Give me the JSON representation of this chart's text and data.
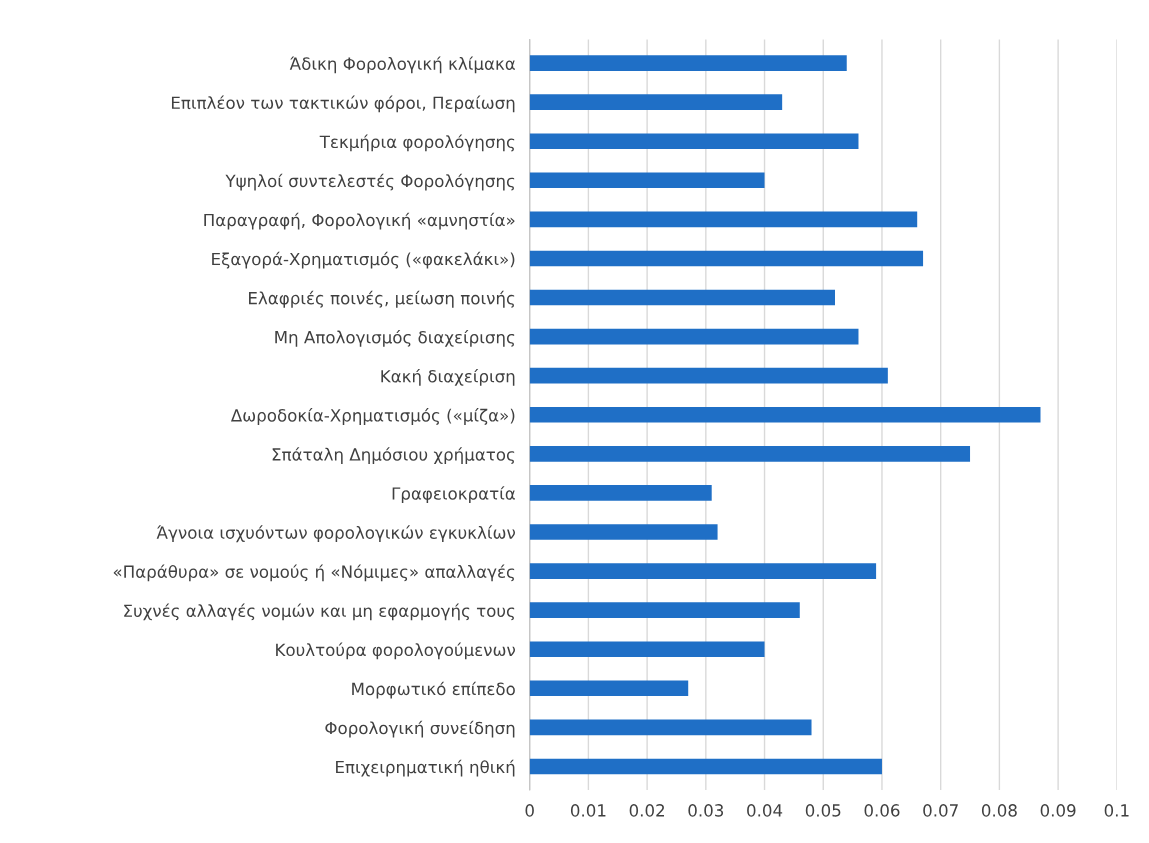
{
  "chart_data": {
    "type": "bar",
    "orientation": "horizontal",
    "categories": [
      "Άδικη Φορολογική κλίμακα",
      "Επιπλέον των τακτικών φόροι, Περαίωση",
      "Τεκμήρια φορολόγησης",
      "Υψηλοί συντελεστές Φορολόγησης",
      "Παραγραφή, Φορολογική «αμνηστία»",
      "Εξαγορά-Χρηματισμός («φακελάκι»)",
      "Ελαφριές ποινές, μείωση ποινής",
      "Μη Απολογισμός διαχείρισης",
      "Κακή διαχείριση",
      "Δωροδοκία-Χρηματισμός («μίζα»)",
      "Σπάταλη Δημόσιου χρήματος",
      "Γραφειοκρατία",
      "Άγνοια ισχυόντων φορολογικών εγκυκλίων",
      "«Παράθυρα» σε νομούς ή «Νόμιμες» απαλλαγές",
      "Συχνές αλλαγές νομών και μη εφαρμογής τους",
      "Κουλτούρα φορολογούμενων",
      "Μορφωτικό επίπεδο",
      "Φορολογική συνείδηση",
      "Επιχειρηματική ηθική"
    ],
    "values": [
      0.054,
      0.043,
      0.056,
      0.04,
      0.066,
      0.067,
      0.052,
      0.056,
      0.061,
      0.087,
      0.075,
      0.031,
      0.032,
      0.059,
      0.046,
      0.04,
      0.027,
      0.048,
      0.06
    ],
    "color": "#1f6fc6",
    "xlim": [
      0,
      0.1
    ],
    "xticks": [
      0,
      0.01,
      0.02,
      0.03,
      0.04,
      0.05,
      0.06,
      0.07,
      0.08,
      0.09,
      0.1
    ],
    "grid": "x",
    "legend": false
  }
}
